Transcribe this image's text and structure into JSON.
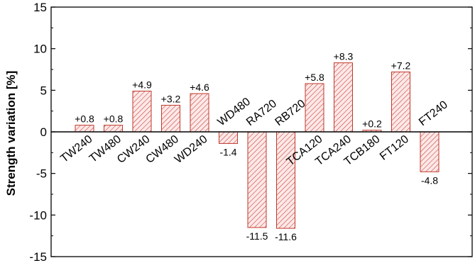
{
  "chart_data": {
    "type": "bar",
    "categories": [
      "TW240",
      "TW480",
      "CW240",
      "CW480",
      "WD240",
      "WD480",
      "RA720",
      "RB720",
      "TCA120",
      "TCA240",
      "TCB180",
      "FT120",
      "FT240"
    ],
    "values": [
      0.8,
      0.8,
      4.9,
      3.2,
      4.6,
      -1.4,
      -11.5,
      -11.6,
      5.8,
      8.3,
      0.2,
      7.2,
      -4.8
    ],
    "value_labels": [
      "+0.8",
      "+0.8",
      "+4.9",
      "+3.2",
      "+4.6",
      "-1.4",
      "-11.5",
      "-11.6",
      "+5.8",
      "+8.3",
      "+0.2",
      "+7.2",
      "-4.8"
    ],
    "title": "",
    "xlabel": "",
    "ylabel": "Strength variation [%]",
    "ylim": [
      -15,
      15
    ],
    "yticks": [
      15,
      10,
      5,
      0,
      -5,
      -10,
      -15
    ],
    "grid": false,
    "colors": {
      "bar_stroke": "#c0392b",
      "hatch": "#c0392b",
      "bar_fill": "#fde8e8",
      "axis": "#000000"
    }
  }
}
